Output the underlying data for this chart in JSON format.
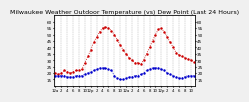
{
  "title": "Milwaukee Weather Outdoor Temperature (vs) Dew Point (Last 24 Hours)",
  "title_fontsize": 4.5,
  "background_color": "#f0f0f0",
  "plot_bg_color": "#ffffff",
  "temp_color": "#cc0000",
  "dew_color": "#0000cc",
  "marker_size": 1.5,
  "grid_color": "#aaaaaa",
  "ylim": [
    10,
    65
  ],
  "yticks": [
    15,
    20,
    25,
    30,
    35,
    40,
    45,
    50,
    55,
    60
  ],
  "ytick_fontsize": 3.0,
  "xtick_fontsize": 2.8,
  "n_points": 48,
  "temp_values": [
    20,
    19,
    20,
    22,
    21,
    20,
    21,
    22,
    22,
    23,
    28,
    33,
    38,
    44,
    48,
    52,
    55,
    56,
    55,
    53,
    50,
    46,
    42,
    38,
    35,
    32,
    30,
    28,
    28,
    27,
    30,
    35,
    40,
    45,
    50,
    54,
    55,
    52,
    48,
    44,
    40,
    36,
    34,
    33,
    32,
    31,
    30,
    29
  ],
  "dew_values": [
    18,
    18,
    18,
    18,
    17,
    17,
    17,
    18,
    18,
    18,
    19,
    20,
    21,
    22,
    23,
    24,
    24,
    24,
    23,
    22,
    18,
    16,
    15,
    15,
    16,
    17,
    17,
    18,
    18,
    19,
    20,
    22,
    23,
    24,
    24,
    24,
    23,
    22,
    20,
    19,
    18,
    17,
    16,
    16,
    17,
    18,
    18,
    18
  ],
  "xtick_positions": [
    0,
    2,
    4,
    6,
    8,
    10,
    12,
    14,
    16,
    18,
    20,
    22,
    24,
    26,
    28,
    30,
    32,
    34,
    36,
    38,
    40,
    42,
    44,
    46
  ],
  "xtick_labels": [
    "12a",
    "2",
    "4",
    "6",
    "8",
    "10",
    "12p",
    "2",
    "4",
    "6",
    "8",
    "10",
    "12a",
    "2",
    "4",
    "6",
    "8",
    "10",
    "12p",
    "2",
    "4",
    "6",
    "8",
    "10"
  ],
  "right_yticks": [
    60,
    55,
    50,
    45,
    40,
    35,
    30,
    25,
    20,
    15
  ],
  "right_ytick_labels": [
    "60",
    "55",
    "50",
    "45",
    "40",
    "35",
    "30",
    "25",
    "20",
    "15"
  ]
}
